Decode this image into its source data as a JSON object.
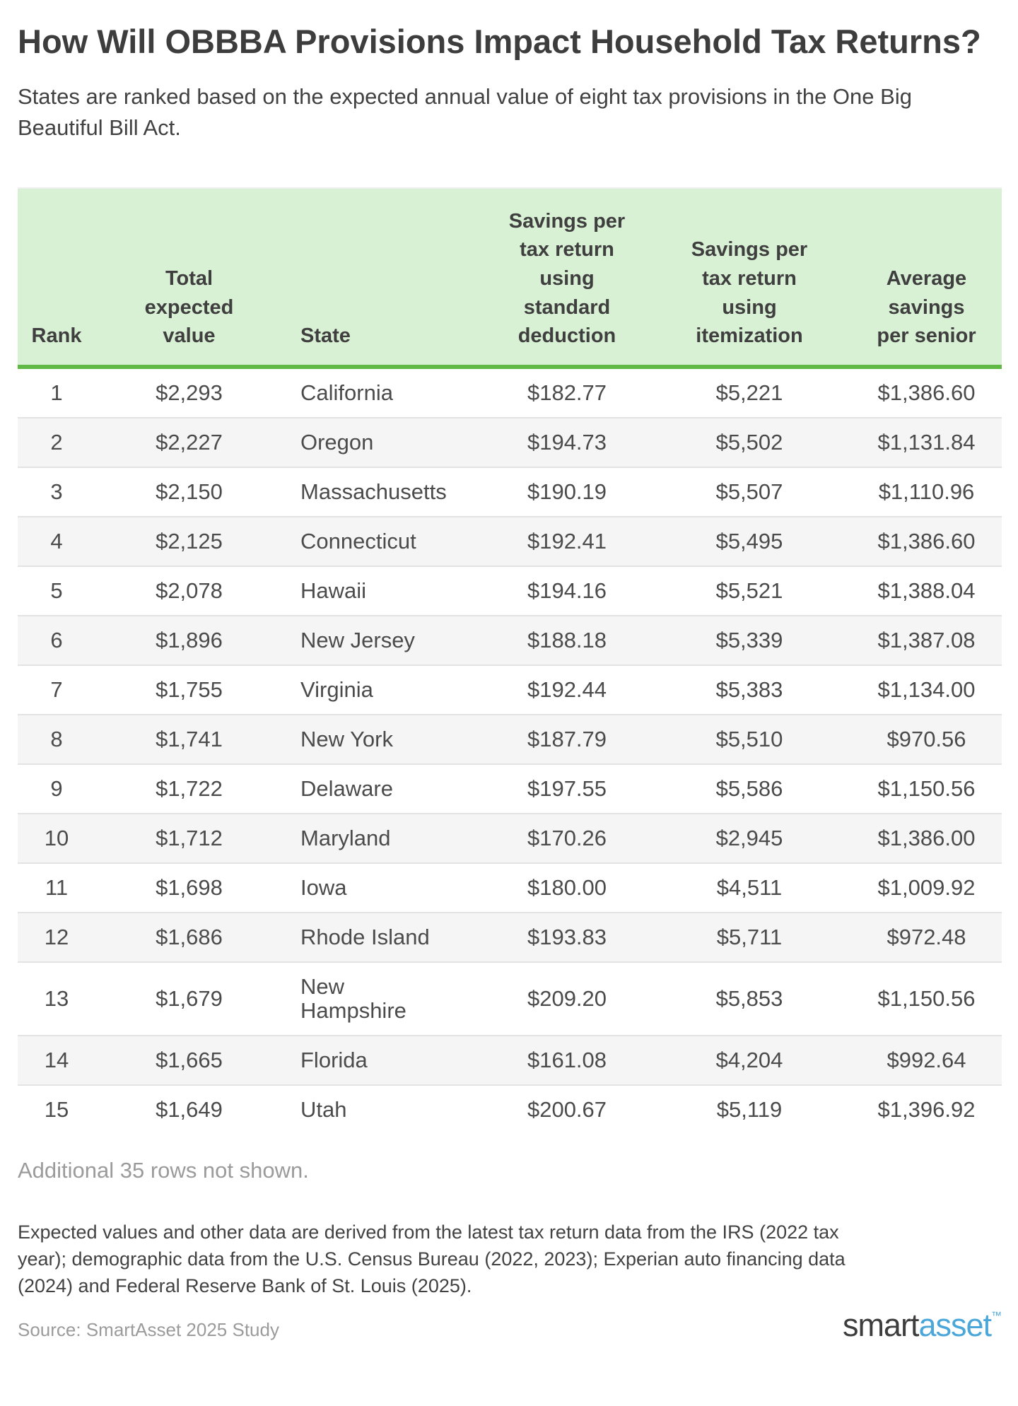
{
  "header": {
    "title": "How Will OBBBA Provisions Impact Household Tax Returns?",
    "subtitle": "States are ranked based on the expected annual value of eight tax provisions in the One Big Beautiful Bill Act."
  },
  "chart_data": {
    "type": "table",
    "title": "How Will OBBBA Provisions Impact Household Tax Returns?",
    "columns": [
      {
        "key": "rank",
        "label": "Rank"
      },
      {
        "key": "total",
        "label": "Total\nexpected\nvalue"
      },
      {
        "key": "state",
        "label": "State"
      },
      {
        "key": "std",
        "label": "Savings per\ntax return\nusing\nstandard\ndeduction"
      },
      {
        "key": "item",
        "label": "Savings per\ntax return\nusing\nitemization"
      },
      {
        "key": "senior",
        "label": "Average\nsavings\nper senior"
      }
    ],
    "rows": [
      [
        "1",
        "$2,293",
        "California",
        "$182.77",
        "$5,221",
        "$1,386.60"
      ],
      [
        "2",
        "$2,227",
        "Oregon",
        "$194.73",
        "$5,502",
        "$1,131.84"
      ],
      [
        "3",
        "$2,150",
        "Massachusetts",
        "$190.19",
        "$5,507",
        "$1,110.96"
      ],
      [
        "4",
        "$2,125",
        "Connecticut",
        "$192.41",
        "$5,495",
        "$1,386.60"
      ],
      [
        "5",
        "$2,078",
        "Hawaii",
        "$194.16",
        "$5,521",
        "$1,388.04"
      ],
      [
        "6",
        "$1,896",
        "New Jersey",
        "$188.18",
        "$5,339",
        "$1,387.08"
      ],
      [
        "7",
        "$1,755",
        "Virginia",
        "$192.44",
        "$5,383",
        "$1,134.00"
      ],
      [
        "8",
        "$1,741",
        "New York",
        "$187.79",
        "$5,510",
        "$970.56"
      ],
      [
        "9",
        "$1,722",
        "Delaware",
        "$197.55",
        "$5,586",
        "$1,150.56"
      ],
      [
        "10",
        "$1,712",
        "Maryland",
        "$170.26",
        "$2,945",
        "$1,386.00"
      ],
      [
        "11",
        "$1,698",
        "Iowa",
        "$180.00",
        "$4,511",
        "$1,009.92"
      ],
      [
        "12",
        "$1,686",
        "Rhode Island",
        "$193.83",
        "$5,711",
        "$972.48"
      ],
      [
        "13",
        "$1,679",
        "New\nHampshire",
        "$209.20",
        "$5,853",
        "$1,150.56"
      ],
      [
        "14",
        "$1,665",
        "Florida",
        "$161.08",
        "$4,204",
        "$992.64"
      ],
      [
        "15",
        "$1,649",
        "Utah",
        "$200.67",
        "$5,119",
        "$1,396.92"
      ]
    ]
  },
  "footer": {
    "additional_note": "Additional 35 rows not shown.",
    "methodology": "Expected values and other data are derived from the latest tax return data from the IRS (2022 tax year); demographic data from the U.S. Census Bureau (2022, 2023); Experian auto financing data (2024) and Federal Reserve Bank of St. Louis (2025).",
    "source": "Source: SmartAsset 2025 Study",
    "logo": {
      "part1": "smart",
      "part2": "asset",
      "tm": "™"
    }
  },
  "colors": {
    "header_bg": "#d8f0d3",
    "header_rule": "#5fb944",
    "alt_row_bg": "#f5f5f5",
    "row_border": "#e3e3e3",
    "text_dark": "#3d3d3d",
    "text_body": "#4b4b4b",
    "text_muted": "#9b9b9b",
    "logo_blue": "#4ba7d9"
  }
}
